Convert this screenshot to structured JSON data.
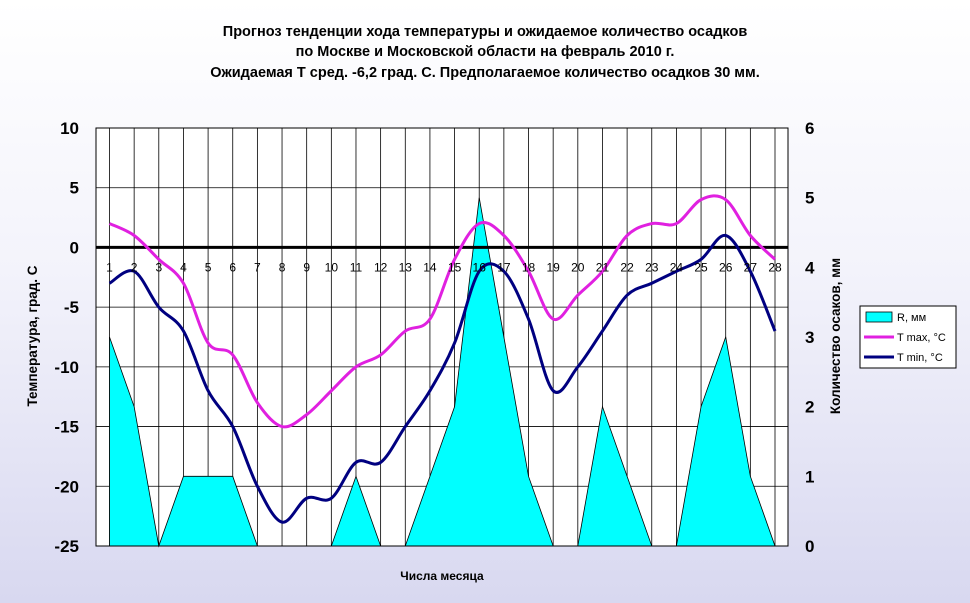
{
  "chart_data": {
    "type": "line",
    "title_lines": [
      "Прогноз тенденции хода температуры и ожидаемое количество осадков",
      "по Москве и Московской области на февраль 2010 г.",
      "Ожидаемая Т сред. -6,2 град. С. Предполагаемое количество осадков 30 мм."
    ],
    "xlabel": "Числа месяца",
    "ylabel": "Температура, град. С",
    "y2label": "Количество осаков, мм",
    "ylim": [
      -25,
      10
    ],
    "y_ticks": [
      "10",
      "5",
      "0",
      "-5",
      "-10",
      "-15",
      "-20",
      "-25"
    ],
    "y2lim": [
      0,
      6
    ],
    "y2_ticks": [
      "6",
      "5",
      "4",
      "3",
      "2",
      "1",
      "0"
    ],
    "x": [
      "1",
      "2",
      "3",
      "4",
      "5",
      "6",
      "7",
      "8",
      "9",
      "10",
      "11",
      "12",
      "13",
      "14",
      "15",
      "16",
      "17",
      "18",
      "19",
      "20",
      "21",
      "22",
      "23",
      "24",
      "25",
      "26",
      "27",
      "28"
    ],
    "grid": true,
    "legend_position": "right",
    "series": [
      {
        "name": "R, мм",
        "kind": "area",
        "axis": "right",
        "color": "#00ffff",
        "values": [
          3,
          2,
          0,
          1,
          1,
          1,
          0,
          0,
          0,
          0,
          1,
          0,
          0,
          1,
          2,
          5,
          3,
          1,
          0,
          0,
          2,
          1,
          0,
          0,
          2,
          3,
          1,
          0
        ]
      },
      {
        "name": "T max, °C",
        "kind": "line",
        "axis": "left",
        "color": "#e020e0",
        "values": [
          2,
          1,
          -1,
          -3,
          -8,
          -9,
          -13,
          -15,
          -14,
          -12,
          -10,
          -9,
          -7,
          -6,
          -1,
          2,
          1,
          -2,
          -6,
          -4,
          -2,
          1,
          2,
          2,
          4,
          4,
          1,
          -1
        ]
      },
      {
        "name": "T min, °C",
        "kind": "line",
        "axis": "left",
        "color": "#000080",
        "values": [
          -3,
          -2,
          -5,
          -7,
          -12,
          -15,
          -20,
          -23,
          -21,
          -21,
          -18,
          -18,
          -15,
          -12,
          -8,
          -2,
          -2,
          -6,
          -12,
          -10,
          -7,
          -4,
          -3,
          -2,
          -1,
          1,
          -2,
          -7
        ]
      }
    ]
  },
  "colors": {
    "plot_bg": "#ffffff",
    "grid": "#000000",
    "zero_line": "#000000"
  }
}
